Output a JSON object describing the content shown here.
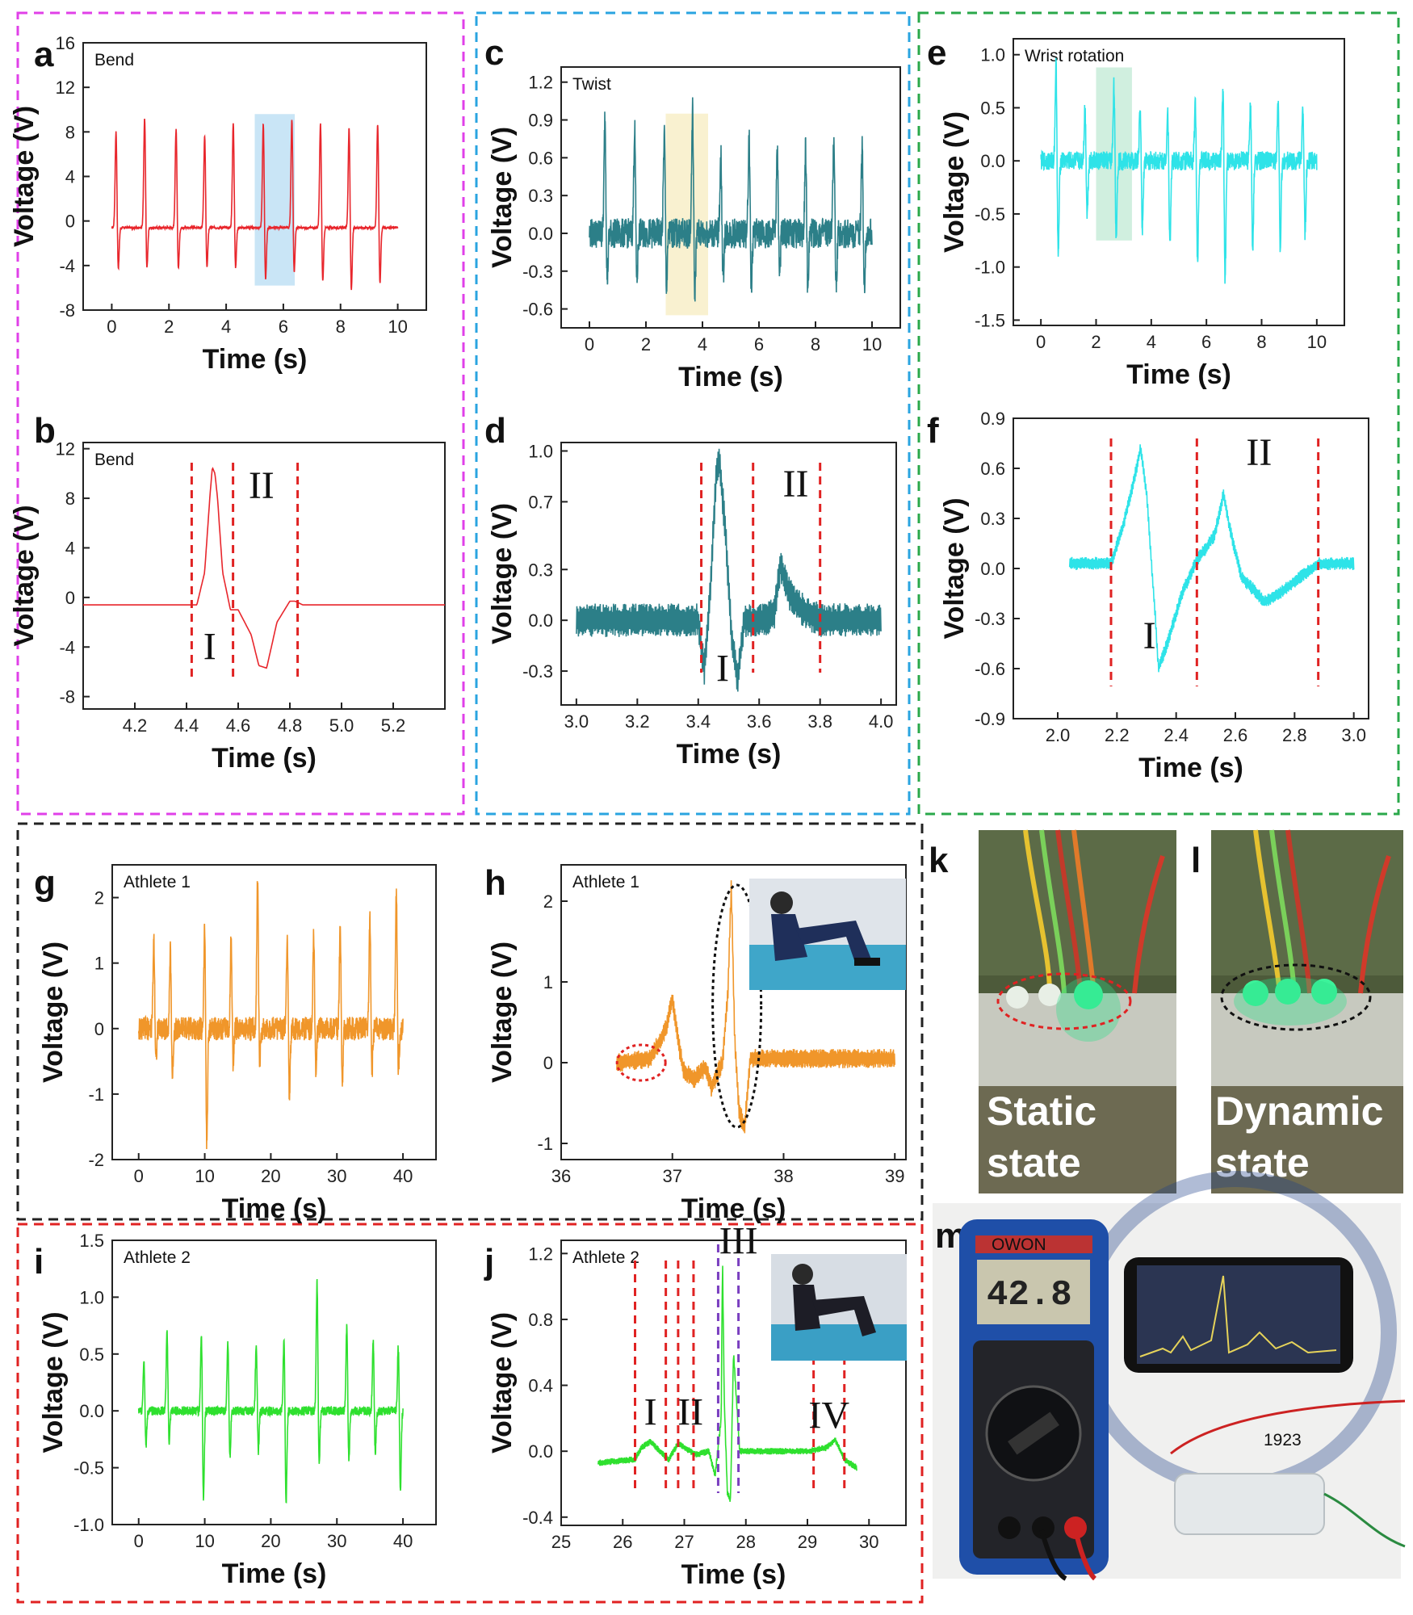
{
  "colors": {
    "a_b": "#e8262c",
    "c_d": "#2c7f88",
    "e_f": "#2ee3e8",
    "g_h": "#f0962a",
    "i_j": "#2ee02e",
    "box_ab": "#e040e8",
    "box_cd": "#2aa4e0",
    "box_ef": "#2aa84a",
    "box_gh": "#222222",
    "box_ij": "#e02222",
    "markers": "#e02222",
    "markers_iii": "#7a3fc0"
  },
  "photos": {
    "k": {
      "label": "k",
      "text_line1": "Static",
      "text_line2": "state"
    },
    "l": {
      "label": "l",
      "text_line1": "Dynamic",
      "text_line2": "state"
    },
    "m": {
      "label": "m",
      "meter_reading": "42.8",
      "meter_brand": "OWON",
      "year_text": "1923"
    }
  },
  "chart_data": [
    {
      "id": "a",
      "type": "line",
      "caption": "Bend",
      "xlabel": "Time (s)",
      "ylabel": "Voltage (V)",
      "xlim": [
        -1,
        11
      ],
      "ylim": [
        -8,
        16
      ],
      "xticks": [
        0,
        2,
        4,
        6,
        8,
        10
      ],
      "yticks": [
        -8,
        -4,
        0,
        4,
        8,
        12,
        16
      ],
      "signal": {
        "kind": "pulse_train",
        "peaks": [
          0.15,
          1.15,
          2.25,
          3.25,
          4.25,
          5.3,
          6.3,
          7.3,
          8.3,
          9.3
        ],
        "pos_amp": [
          8.8,
          10,
          9,
          8.4,
          9.6,
          9.6,
          10,
          9.6,
          9.2,
          9.6
        ],
        "neg_amp": [
          -4.6,
          -4.6,
          -4.6,
          -4.5,
          -4.6,
          -5.6,
          -5.0,
          -5.8,
          -6.6,
          -6.0
        ],
        "baseline": -0.6,
        "noise": 0.1,
        "x_end": 10
      },
      "highlight": {
        "x": [
          5.0,
          6.4
        ],
        "y": [
          -5.8,
          9.6
        ],
        "color": "#bfe0f5"
      }
    },
    {
      "id": "b",
      "type": "line",
      "caption": "Bend",
      "xlabel": "Time (s)",
      "ylabel": "Voltage (V)",
      "xlim": [
        4.0,
        5.4
      ],
      "ylim": [
        -9,
        12.5
      ],
      "xticks": [
        4.2,
        4.4,
        4.6,
        4.8,
        5.0,
        5.2
      ],
      "yticks": [
        -8,
        -4,
        0,
        4,
        8,
        12
      ],
      "signal": {
        "kind": "points",
        "x": [
          4.0,
          4.44,
          4.47,
          4.49,
          4.5,
          4.51,
          4.52,
          4.54,
          4.57,
          4.6,
          4.65,
          4.68,
          4.71,
          4.75,
          4.8,
          4.82,
          4.85,
          5.4
        ],
        "y": [
          -0.6,
          -0.6,
          2,
          8,
          10.5,
          10,
          8,
          2,
          -1,
          -1,
          -3,
          -5.5,
          -5.7,
          -2,
          -0.3,
          -0.3,
          -0.6,
          -0.6
        ],
        "noise": 0
      },
      "vlines": [
        4.42,
        4.58,
        4.83
      ],
      "roman": [
        {
          "t": "I",
          "x": 4.49,
          "y": -5.0
        },
        {
          "t": "II",
          "x": 4.69,
          "y": 8.0
        }
      ]
    },
    {
      "id": "c",
      "type": "line",
      "caption": "Twist",
      "xlabel": "Time (s)",
      "ylabel": "Voltage (V)",
      "xlim": [
        -1,
        11
      ],
      "ylim": [
        -0.75,
        1.32
      ],
      "xticks": [
        0,
        2,
        4,
        6,
        8,
        10
      ],
      "yticks": [
        -0.6,
        -0.3,
        0.0,
        0.3,
        0.6,
        0.9,
        1.2
      ],
      "signal": {
        "kind": "pulse_train",
        "peaks": [
          0.55,
          1.6,
          2.65,
          3.65,
          4.65,
          5.65,
          6.65,
          7.65,
          8.65,
          9.65
        ],
        "pos_amp": [
          0.95,
          0.85,
          0.82,
          1.0,
          0.65,
          0.78,
          0.65,
          0.72,
          0.78,
          0.68
        ],
        "neg_amp": [
          -0.4,
          -0.4,
          -0.46,
          -0.5,
          -0.38,
          -0.45,
          -0.35,
          -0.48,
          -0.45,
          -0.42
        ],
        "baseline": 0.0,
        "noise": 0.12,
        "x_end": 10
      },
      "highlight": {
        "x": [
          2.7,
          4.2
        ],
        "y": [
          -0.65,
          0.95
        ],
        "color": "#f8efc8"
      }
    },
    {
      "id": "d",
      "type": "line",
      "caption": "",
      "xlabel": "Time (s)",
      "ylabel": "Voltage (V)",
      "xlim": [
        2.95,
        4.05
      ],
      "ylim": [
        -0.5,
        1.05
      ],
      "xticks": [
        3.0,
        3.2,
        3.4,
        3.6,
        3.8,
        4.0
      ],
      "yticks": [
        -0.3,
        0.0,
        0.3,
        0.7,
        1.0
      ],
      "signal": {
        "kind": "points",
        "x": [
          3.0,
          3.4,
          3.42,
          3.44,
          3.46,
          3.47,
          3.49,
          3.51,
          3.53,
          3.55,
          3.58,
          3.62,
          3.65,
          3.67,
          3.7,
          3.75,
          3.8,
          4.0
        ],
        "y": [
          0.0,
          0.0,
          -0.3,
          0.2,
          0.9,
          0.95,
          0.5,
          -0.1,
          -0.35,
          0.0,
          0.0,
          0.0,
          0.05,
          0.33,
          0.15,
          0.05,
          0.0,
          0.0
        ],
        "noise": 0.1
      },
      "vlines": [
        3.41,
        3.58,
        3.8
      ],
      "roman": [
        {
          "t": "I",
          "x": 3.48,
          "y": -0.36
        },
        {
          "t": "II",
          "x": 3.72,
          "y": 0.73
        }
      ]
    },
    {
      "id": "e",
      "type": "line",
      "caption": "Wrist rotation",
      "xlabel": "Time (s)",
      "ylabel": "Voltage (V)",
      "xlim": [
        -1,
        11
      ],
      "ylim": [
        -1.55,
        1.15
      ],
      "xticks": [
        0,
        2,
        4,
        6,
        8,
        10
      ],
      "yticks": [
        -1.5,
        -1.0,
        -0.5,
        0.0,
        0.5,
        1.0
      ],
      "signal": {
        "kind": "pulse_train",
        "peaks": [
          0.55,
          1.6,
          2.65,
          3.6,
          4.6,
          5.6,
          6.6,
          7.6,
          8.6,
          9.5
        ],
        "pos_amp": [
          0.95,
          0.52,
          0.75,
          0.52,
          0.5,
          0.58,
          0.72,
          0.56,
          0.6,
          0.53
        ],
        "neg_amp": [
          -0.95,
          -0.52,
          -0.75,
          -0.65,
          -0.82,
          -0.98,
          -1.15,
          -0.88,
          -0.82,
          -0.72
        ],
        "baseline": 0.0,
        "noise": 0.09,
        "x_end": 10
      },
      "highlight": {
        "x": [
          2.0,
          3.3
        ],
        "y": [
          -0.75,
          0.88
        ],
        "color": "#c8ecd9"
      }
    },
    {
      "id": "f",
      "type": "line",
      "caption": "",
      "xlabel": "Time (s)",
      "ylabel": "Voltage (V)",
      "xlim": [
        1.85,
        3.05
      ],
      "ylim": [
        -0.9,
        0.9
      ],
      "xticks": [
        2.0,
        2.2,
        2.4,
        2.6,
        2.8,
        3.0
      ],
      "yticks": [
        -0.9,
        -0.6,
        -0.3,
        0.0,
        0.3,
        0.6,
        0.9
      ],
      "signal": {
        "kind": "points",
        "x": [
          2.04,
          2.18,
          2.22,
          2.26,
          2.28,
          2.3,
          2.33,
          2.34,
          2.37,
          2.42,
          2.47,
          2.5,
          2.53,
          2.56,
          2.58,
          2.62,
          2.7,
          2.75,
          2.82,
          2.88,
          3.0
        ],
        "y": [
          0.03,
          0.03,
          0.25,
          0.55,
          0.72,
          0.45,
          -0.3,
          -0.6,
          -0.45,
          -0.15,
          0.05,
          0.12,
          0.2,
          0.45,
          0.25,
          -0.05,
          -0.2,
          -0.15,
          -0.05,
          0.03,
          0.03
        ],
        "noise": 0.04
      },
      "vlines": [
        2.18,
        2.47,
        2.88
      ],
      "roman": [
        {
          "t": "I",
          "x": 2.31,
          "y": -0.48
        },
        {
          "t": "II",
          "x": 2.68,
          "y": 0.62
        }
      ]
    },
    {
      "id": "g",
      "type": "line",
      "caption": "Athlete 1",
      "xlabel": "Time (s)",
      "ylabel": "Voltage (V)",
      "xlim": [
        -4,
        45
      ],
      "ylim": [
        -2.0,
        2.5
      ],
      "xticks": [
        0,
        10,
        20,
        30,
        40
      ],
      "yticks": [
        -2,
        -1,
        0,
        1,
        2
      ],
      "signal": {
        "kind": "pulse_train",
        "peaks": [
          2.3,
          4.8,
          10.0,
          14.0,
          18.0,
          22.5,
          26.5,
          30.5,
          35.0,
          39.0
        ],
        "pos_amp": [
          1.4,
          1.2,
          1.6,
          1.4,
          2.35,
          1.45,
          1.5,
          1.6,
          1.7,
          2.15
        ],
        "neg_amp": [
          -0.5,
          -0.8,
          -1.85,
          -0.6,
          -0.6,
          -1.1,
          -0.75,
          -0.85,
          -0.7,
          -0.7
        ],
        "baseline": 0.0,
        "noise": 0.18,
        "x_end": 40
      },
      "highlight": null
    },
    {
      "id": "h",
      "type": "line",
      "caption": "Athlete 1",
      "xlabel": "Time (s)",
      "ylabel": "Voltage (V)",
      "xlim": [
        36.0,
        39.1
      ],
      "ylim": [
        -1.2,
        2.45
      ],
      "xticks": [
        36,
        37,
        38,
        39
      ],
      "yticks": [
        -1,
        0,
        1,
        2
      ],
      "signal": {
        "kind": "points",
        "x": [
          36.5,
          36.8,
          36.9,
          36.95,
          37.0,
          37.03,
          37.06,
          37.1,
          37.2,
          37.3,
          37.35,
          37.45,
          37.5,
          37.53,
          37.56,
          37.6,
          37.65,
          37.7,
          38.2,
          38.6,
          39.0
        ],
        "y": [
          0.0,
          0.05,
          0.3,
          0.45,
          0.8,
          0.5,
          0.2,
          -0.1,
          -0.2,
          -0.05,
          -0.3,
          0.0,
          0.9,
          2.2,
          0.3,
          -0.6,
          -0.8,
          0.05,
          0.05,
          0.05,
          0.05
        ],
        "noise": 0.12
      },
      "vlines": [],
      "roman": []
    },
    {
      "id": "i",
      "type": "line",
      "caption": "Athlete 2",
      "xlabel": "Time (s)",
      "ylabel": "Voltage (V)",
      "xlim": [
        -4,
        45
      ],
      "ylim": [
        -1.0,
        1.5
      ],
      "xticks": [
        0,
        10,
        20,
        30,
        40
      ],
      "yticks": [
        -1.0,
        -0.5,
        0.0,
        0.5,
        1.0,
        1.5
      ],
      "signal": {
        "kind": "pulse_train",
        "peaks": [
          0.8,
          4.3,
          9.5,
          13.5,
          17.8,
          22.0,
          27.0,
          31.5,
          35.5,
          39.3
        ],
        "pos_amp": [
          0.47,
          0.7,
          0.72,
          0.65,
          0.62,
          0.68,
          1.15,
          0.75,
          0.64,
          0.6
        ],
        "neg_amp": [
          -0.32,
          -0.3,
          -0.82,
          -0.45,
          -0.38,
          -0.84,
          -0.5,
          -0.45,
          -0.4,
          -0.72
        ],
        "baseline": 0.0,
        "noise": 0.04,
        "x_end": 40
      },
      "highlight": null
    },
    {
      "id": "j",
      "type": "line",
      "caption": "Athlete 2",
      "xlabel": "Time (s)",
      "ylabel": "Voltage (V)",
      "xlim": [
        25.0,
        30.6
      ],
      "ylim": [
        -0.45,
        1.28
      ],
      "xticks": [
        25,
        26,
        27,
        28,
        29,
        30
      ],
      "yticks": [
        -0.4,
        0.0,
        0.4,
        0.8,
        1.2
      ],
      "signal": {
        "kind": "points",
        "x": [
          25.6,
          26.2,
          26.3,
          26.45,
          26.6,
          26.75,
          26.9,
          27.0,
          27.2,
          27.4,
          27.5,
          27.6,
          27.62,
          27.65,
          27.7,
          27.75,
          27.8,
          27.9,
          28.2,
          29.0,
          29.3,
          29.45,
          29.6,
          29.8
        ],
        "y": [
          -0.07,
          -0.05,
          0.02,
          0.06,
          0.0,
          -0.05,
          0.05,
          0.02,
          -0.02,
          0.0,
          -0.15,
          0.2,
          1.2,
          0.3,
          -0.25,
          -0.3,
          0.6,
          0.0,
          0.0,
          0.0,
          0.02,
          0.07,
          -0.05,
          -0.1
        ],
        "noise": 0.02
      },
      "vlines": [
        26.2,
        26.7,
        26.9,
        27.15,
        29.1,
        29.6
      ],
      "vlines2": [
        27.55,
        27.88
      ],
      "roman": [
        {
          "t": "I",
          "x": 26.45,
          "y": 0.16
        },
        {
          "t": "II",
          "x": 27.1,
          "y": 0.16
        },
        {
          "t": "III",
          "x": 27.88,
          "y": 1.2
        },
        {
          "t": "IV",
          "x": 29.35,
          "y": 0.14
        }
      ]
    }
  ]
}
